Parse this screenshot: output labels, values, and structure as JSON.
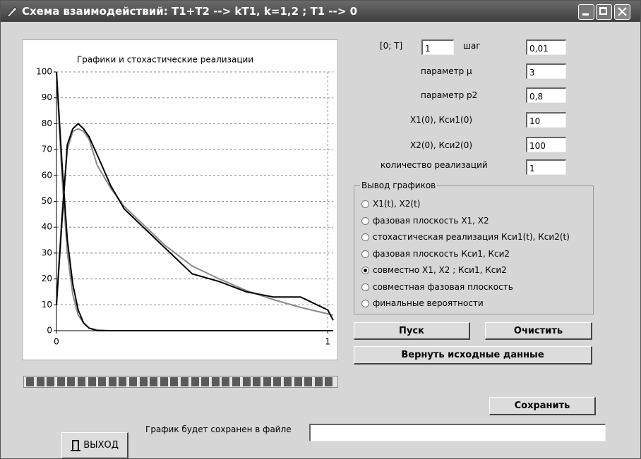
{
  "window": {
    "title": "Схема взаимодействий: T1+T2 --> kT1,  k=1,2 ;  T1 --> 0"
  },
  "chart_data": {
    "type": "line",
    "title": "Графики и стохастические реализации",
    "x": [
      0,
      0.02,
      0.04,
      0.06,
      0.08,
      0.1,
      0.12,
      0.15,
      0.2,
      0.25,
      0.3,
      0.4,
      0.5,
      0.6,
      0.7,
      0.8,
      0.9,
      1.0,
      1.02
    ],
    "series": [
      {
        "color": "#8a8a8a",
        "values": [
          10,
          45,
          70,
          77,
          78,
          77,
          74,
          64,
          55,
          48,
          43,
          33,
          25,
          20,
          15.5,
          12,
          9,
          6.5,
          6
        ]
      },
      {
        "color": "#8a8a8a",
        "values": [
          100,
          60,
          30,
          14,
          6,
          3,
          1,
          0.3,
          0,
          0,
          0,
          0,
          0,
          0,
          0,
          0,
          0,
          0,
          0
        ]
      },
      {
        "color": "#000000",
        "values": [
          10,
          42,
          72,
          78,
          80,
          78,
          75,
          68,
          56,
          47,
          42,
          32,
          22,
          19,
          15,
          13,
          13,
          8,
          4
        ]
      },
      {
        "color": "#000000",
        "values": [
          100,
          65,
          35,
          18,
          8,
          3,
          1,
          0,
          0,
          0,
          0,
          0,
          0,
          0,
          0,
          0,
          0,
          0,
          0
        ]
      }
    ],
    "xlim": [
      0,
      1.02
    ],
    "ylim": [
      0,
      100
    ],
    "xticks": [
      0,
      1
    ],
    "yticks": [
      0,
      10,
      20,
      30,
      40,
      50,
      60,
      70,
      80,
      90,
      100
    ],
    "grid": true
  },
  "params": [
    {
      "label": "[0; T]",
      "value": "1"
    },
    {
      "label": "шаг",
      "value": "0,01"
    },
    {
      "label": "параметр  μ",
      "value": "3"
    },
    {
      "label": "параметр  p2",
      "value": "0,8"
    },
    {
      "label": "X1(0), Кси1(0)",
      "value": "10"
    },
    {
      "label": "X2(0), Кси2(0)",
      "value": "100"
    },
    {
      "label": "количество реализаций",
      "value": "1"
    }
  ],
  "output_group": {
    "title": "Вывод графиков",
    "selected": 4,
    "options": [
      "X1(t), X2(t)",
      "фазовая плоскость X1, X2",
      "стохастическая реализация Кси1(t), Кси2(t)",
      "фазовая плоскость Кси1, Кси2",
      "совместно X1, X2 ;  Кси1, Кси2",
      "совместная фазовая плоскость",
      "финальные вероятности"
    ]
  },
  "buttons": {
    "start": "Пуск",
    "clear": "Очистить",
    "reset": "Вернуть исходные данные",
    "save": "Сохранить",
    "exit": "ВЫХОД"
  },
  "save_label": "График будет сохранен в файле"
}
